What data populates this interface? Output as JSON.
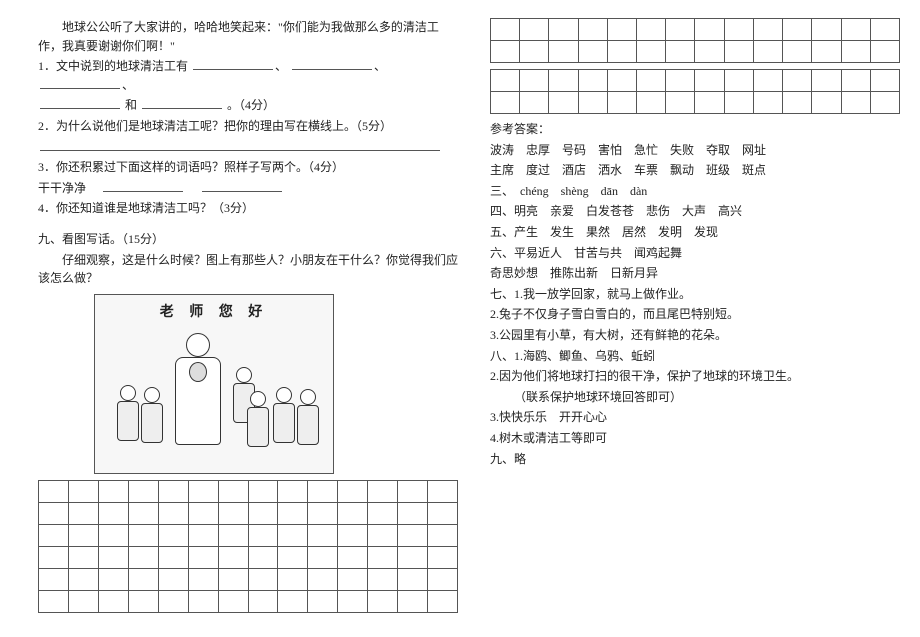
{
  "left": {
    "passage_indent": "地球公公听了大家讲的，哈哈地笑起来：\"你们能为我做那么多的清洁工作，我真要谢谢你们啊！\"",
    "q1_prefix": "1．文中说到的地球清洁工有",
    "q1_and": "和",
    "q1_score": "。（4分）",
    "q2": "2．为什么说他们是地球清洁工呢？把你的理由写在横线上。（5分）",
    "q3_line1": "3．你还积累过下面这样的词语吗？照样子写两个。（4分）",
    "q3_line2": "干干净净",
    "q4": "4．你还知道谁是地球清洁工吗？（3分）",
    "section9_title": "九、看图写话。（15分）",
    "section9_prompt": "仔细观察，这是什么时候？图上有那些人？小朋友在干什么？你觉得我们应该怎么做？",
    "image_caption": "老 师 您 好"
  },
  "right": {
    "answers_title": "参考答案：",
    "a1": "波涛　忠厚　号码　害怕　急忙　失败　夺取　网址",
    "a2": "主席　度过　酒店　洒水　车票　飘动　班级　斑点",
    "a3": "三、　chéng　shèng　dān　dàn",
    "a4": "四、明亮　亲爱　白发苍苍　悲伤　大声　高兴",
    "a5": "五、产生　发生　果然　居然　发明　发现",
    "a6": "六、平易近人　甘苦与共　闻鸡起舞",
    "a6b": "奇思妙想　推陈出新　日新月异",
    "a7_1": "七、1.我一放学回家，就马上做作业。",
    "a7_2": "2.兔子不仅身子雪白雪白的，而且尾巴特别短。",
    "a7_3": "3.公园里有小草，有大树，还有鲜艳的花朵。",
    "a8_1": "八、1.海鸥、鲫鱼、乌鸦、蚯蚓",
    "a8_2": "2.因为他们将地球打扫的很干净，保护了地球的环境卫生。",
    "a8_2b": "（联系保护地球环境回答即可）",
    "a8_3": "3.快快乐乐　开开心心",
    "a8_4": "4.树木或清洁工等即可",
    "a9": "九、略"
  },
  "layout": {
    "left_grid_rows": 6,
    "left_grid_cols": 14,
    "right_top_grid1_rows": 2,
    "right_top_grid1_cols": 14,
    "right_top_grid2_rows": 2,
    "right_top_grid2_cols": 14
  }
}
